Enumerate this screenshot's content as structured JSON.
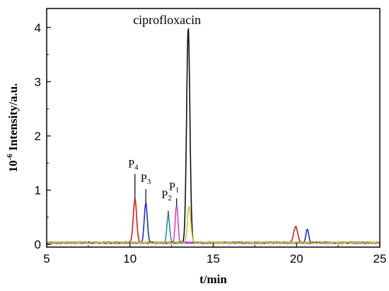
{
  "chart_data": {
    "type": "line",
    "xlabel": "t/min",
    "ylabel_prefix": "10",
    "ylabel_exponent": "-6",
    "ylabel_rest": " Intensity/a.u.",
    "xlim": [
      5,
      25
    ],
    "ylim": [
      -0.05,
      4.35
    ],
    "xticks": [
      5,
      10,
      15,
      20,
      25
    ],
    "yticks": [
      0,
      1,
      2,
      3,
      4
    ],
    "grid": false,
    "legend": "none",
    "baseline": 0.03,
    "series": [
      {
        "color": "#cc1f1f",
        "peaks": [
          {
            "x": 10.3,
            "h": 0.8,
            "w": 0.1
          },
          {
            "x": 19.95,
            "h": 0.3,
            "w": 0.12
          }
        ]
      },
      {
        "color": "#1c2fb8",
        "peaks": [
          {
            "x": 10.95,
            "h": 0.74,
            "w": 0.09
          },
          {
            "x": 20.65,
            "h": 0.25,
            "w": 0.08
          }
        ]
      },
      {
        "color": "#2a8f8f",
        "peaks": [
          {
            "x": 12.3,
            "h": 0.51,
            "w": 0.08
          }
        ]
      },
      {
        "color": "#d23fd2",
        "peaks": [
          {
            "x": 12.8,
            "h": 0.7,
            "w": 0.08
          }
        ]
      },
      {
        "color": "#111111",
        "peaks": [
          {
            "x": 13.5,
            "h": 3.96,
            "w": 0.1
          }
        ]
      },
      {
        "color": "#c9c23a",
        "peaks": [
          {
            "x": 13.55,
            "h": 0.68,
            "w": 0.1
          }
        ]
      }
    ],
    "annotations": [
      {
        "label": "ciprofloxacin",
        "x": 13.5
      },
      {
        "base": "P",
        "sub": "1",
        "x": 12.8,
        "y_top": 0.85,
        "y_bottom": 0.72,
        "tx": 12.65,
        "ty": 1.0
      },
      {
        "base": "P",
        "sub": "2",
        "x": 12.3,
        "y_top": 0.62,
        "y_bottom": 0.53,
        "tx": 12.2,
        "ty": 0.85
      },
      {
        "base": "P",
        "sub": "3",
        "x": 10.95,
        "y_top": 1.02,
        "y_bottom": 0.76,
        "tx": 10.95,
        "ty": 1.15
      },
      {
        "base": "P",
        "sub": "4",
        "x": 10.3,
        "y_top": 1.3,
        "y_bottom": 0.82,
        "tx": 10.2,
        "ty": 1.42
      }
    ]
  }
}
